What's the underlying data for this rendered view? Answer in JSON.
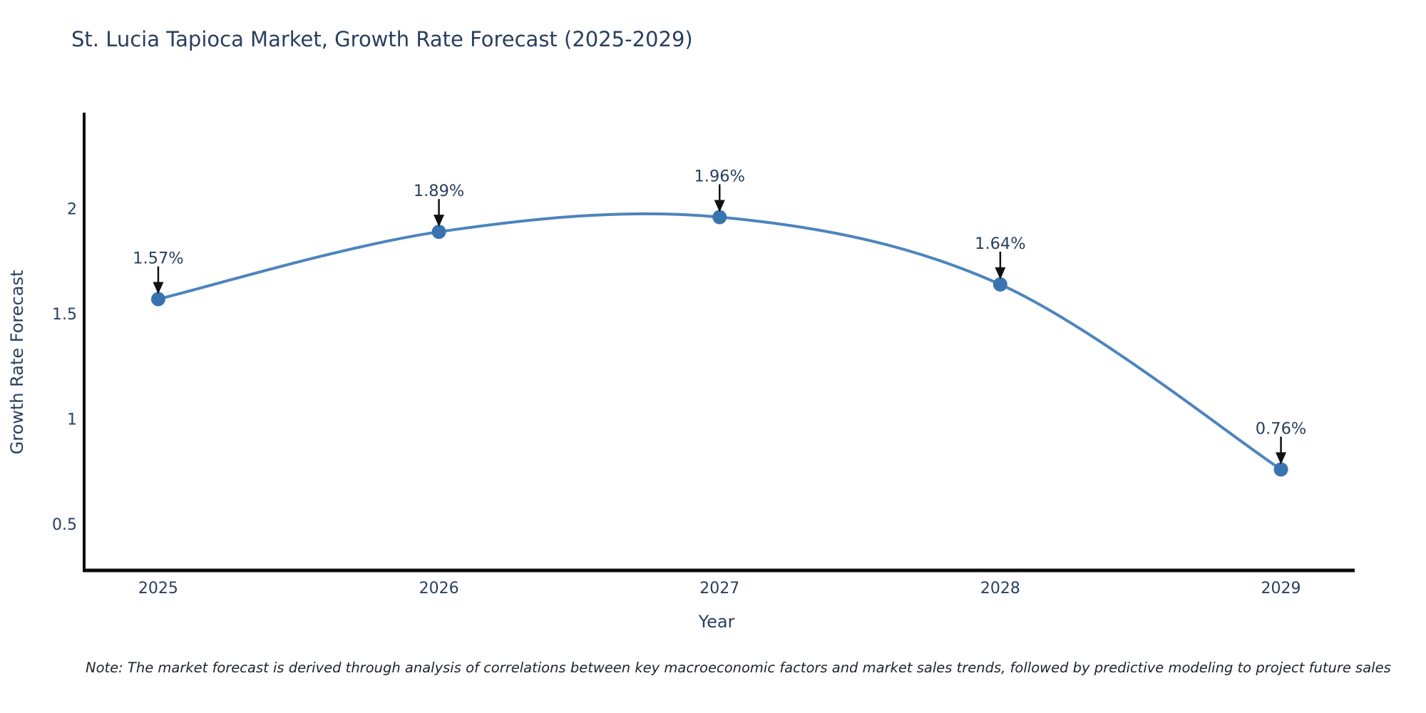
{
  "title": "St. Lucia Tapioca Market, Growth Rate Forecast (2025-2029)",
  "note": "Note: The market forecast is derived through analysis of correlations between key macroeconomic factors and market sales trends, followed by predictive modeling to project future sales",
  "chart_data": {
    "type": "line",
    "title": "St. Lucia Tapioca Market, Growth Rate Forecast (2025-2029)",
    "xlabel": "Year",
    "ylabel": "Growth Rate Forecast",
    "x": [
      2025,
      2026,
      2027,
      2028,
      2029
    ],
    "series": [
      {
        "name": "Growth Rate Forecast",
        "values": [
          1.57,
          1.89,
          1.96,
          1.64,
          0.76
        ]
      }
    ],
    "point_labels": [
      "1.57%",
      "1.89%",
      "1.96%",
      "1.64%",
      "0.76%"
    ],
    "x_tick_labels": [
      "2025",
      "2026",
      "2027",
      "2028",
      "2029"
    ],
    "y_tick_values": [
      0.5,
      1,
      1.5,
      2
    ],
    "y_tick_labels": [
      "0.5",
      "1",
      "1.5",
      "2"
    ],
    "xlim": [
      2024.736,
      2029.245
    ],
    "ylim": [
      0.28,
      2.45
    ],
    "line_shape": "spline",
    "grid": false,
    "legend_position": "none",
    "colors": {
      "line": "#4d84bd",
      "marker": "#3a74b0",
      "axis": "#0d0d0d",
      "arrow": "#111111",
      "label_text": "#2a3f5f",
      "tick_text": "#2a3f5f",
      "background": "#ffffff"
    }
  }
}
